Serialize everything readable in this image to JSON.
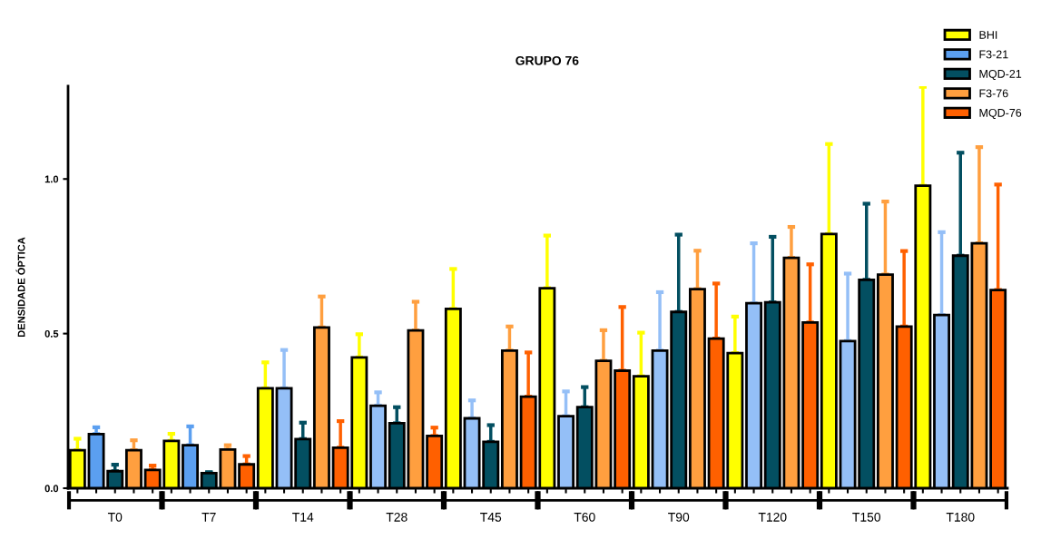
{
  "chart_data": {
    "type": "bar",
    "title": "GRUPO 76",
    "ylabel": "DENSIDADE ÓPTICA",
    "categories": [
      "T0",
      "T7",
      "T14",
      "T28",
      "T45",
      "T60",
      "T90",
      "T120",
      "T150",
      "T180"
    ],
    "ylim": [
      0,
      1.3
    ],
    "yticks": [
      {
        "value": 0,
        "label": "0.0"
      },
      {
        "value": 0.5,
        "label": "0.5"
      },
      {
        "value": 1,
        "label": "1.0"
      }
    ],
    "grid": false,
    "legend": "top right",
    "series": [
      {
        "name": "BHI",
        "color": "#ffff00",
        "values": [
          0.123,
          0.153,
          0.323,
          0.423,
          0.58,
          0.647,
          0.362,
          0.437,
          0.822,
          0.978
        ],
        "errors": [
          [
            0.123,
            0.16
          ],
          [
            0.153,
            0.176
          ],
          [
            0.323,
            0.407
          ],
          [
            0.423,
            0.498
          ],
          [
            0.58,
            0.709
          ],
          [
            0.647,
            0.817
          ],
          [
            0.362,
            0.503
          ],
          [
            0.437,
            0.555
          ],
          [
            0.822,
            1.113
          ],
          [
            0.978,
            1.298
          ]
        ]
      },
      {
        "name": "F3-21",
        "color": "#5b9ff0",
        "colors": [
          "#5b9ff0",
          "#5b9ff0",
          "#94bff7",
          "#94bff7",
          "#94bff7",
          "#94bff7",
          "#94bff7",
          "#94bff7",
          "#94bff7",
          "#94bff7"
        ],
        "values": [
          0.175,
          0.139,
          0.323,
          0.267,
          0.226,
          0.233,
          0.445,
          0.598,
          0.476,
          0.56
        ],
        "errors": [
          [
            0.175,
            0.197
          ],
          [
            0.139,
            0.2
          ],
          [
            0.323,
            0.447
          ],
          [
            0.267,
            0.31
          ],
          [
            0.226,
            0.284
          ],
          [
            0.233,
            0.313
          ],
          [
            0.445,
            0.634
          ],
          [
            0.598,
            0.792
          ],
          [
            0.476,
            0.694
          ],
          [
            0.56,
            0.828
          ]
        ]
      },
      {
        "name": "MQD-21",
        "color": "#034f61",
        "values": [
          0.055,
          0.049,
          0.159,
          0.21,
          0.15,
          0.262,
          0.57,
          0.601,
          0.674,
          0.752
        ],
        "errors": [
          [
            0.055,
            0.076
          ],
          [
            0.049,
            0.052
          ],
          [
            0.159,
            0.212
          ],
          [
            0.21,
            0.262
          ],
          [
            0.15,
            0.204
          ],
          [
            0.262,
            0.327
          ],
          [
            0.57,
            0.82
          ],
          [
            0.601,
            0.813
          ],
          [
            0.674,
            0.92
          ],
          [
            0.752,
            1.085
          ]
        ]
      },
      {
        "name": "F3-76",
        "color": "#ff9f3f",
        "values": [
          0.123,
          0.125,
          0.52,
          0.51,
          0.445,
          0.412,
          0.644,
          0.745,
          0.691,
          0.792
        ],
        "errors": [
          [
            0.123,
            0.155
          ],
          [
            0.125,
            0.139
          ],
          [
            0.52,
            0.62
          ],
          [
            0.51,
            0.603
          ],
          [
            0.445,
            0.523
          ],
          [
            0.412,
            0.511
          ],
          [
            0.644,
            0.768
          ],
          [
            0.745,
            0.845
          ],
          [
            0.691,
            0.927
          ],
          [
            0.792,
            1.103
          ]
        ]
      },
      {
        "name": "MQD-76",
        "color": "#ff6000",
        "values": [
          0.059,
          0.077,
          0.131,
          0.169,
          0.296,
          0.38,
          0.484,
          0.536,
          0.523,
          0.641
        ],
        "errors": [
          [
            0.059,
            0.073
          ],
          [
            0.077,
            0.104
          ],
          [
            0.131,
            0.217
          ],
          [
            0.169,
            0.196
          ],
          [
            0.296,
            0.439
          ],
          [
            0.38,
            0.586
          ],
          [
            0.484,
            0.662
          ],
          [
            0.536,
            0.724
          ],
          [
            0.523,
            0.767
          ],
          [
            0.641,
            0.982
          ]
        ]
      }
    ]
  }
}
